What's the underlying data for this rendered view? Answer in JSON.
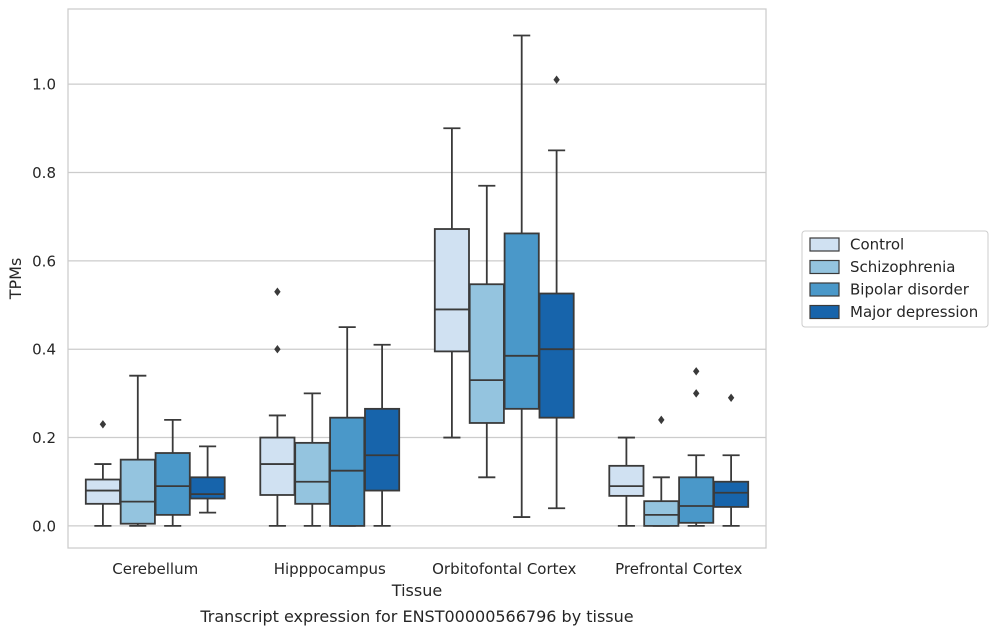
{
  "chart_data": {
    "type": "box",
    "caption": "Transcript expression for ENST00000566796 by tissue",
    "xlabel": "Tissue",
    "ylabel": "TPMs",
    "ylim": [
      -0.05,
      1.17
    ],
    "yticks": [
      0.0,
      0.2,
      0.4,
      0.6,
      0.8,
      1.0
    ],
    "ytick_labels": [
      "0.0",
      "0.2",
      "0.4",
      "0.6",
      "0.8",
      "1.0"
    ],
    "categories": [
      "Cerebellum",
      "Hipppocampus",
      "Orbitofontal Cortex",
      "Prefrontal Cortex"
    ],
    "grid": "horizontal",
    "legend_position": "right",
    "series": [
      {
        "name": "Control",
        "color": "#d0e1f2",
        "boxes": [
          {
            "whislo": 0.0,
            "q1": 0.05,
            "med": 0.08,
            "q3": 0.105,
            "whishi": 0.14,
            "fliers": [
              0.23
            ]
          },
          {
            "whislo": 0.0,
            "q1": 0.07,
            "med": 0.14,
            "q3": 0.2,
            "whishi": 0.25,
            "fliers": [
              0.4,
              0.53
            ]
          },
          {
            "whislo": 0.2,
            "q1": 0.395,
            "med": 0.49,
            "q3": 0.672,
            "whishi": 0.9,
            "fliers": []
          },
          {
            "whislo": 0.0,
            "q1": 0.068,
            "med": 0.09,
            "q3": 0.136,
            "whishi": 0.2,
            "fliers": []
          }
        ]
      },
      {
        "name": "Schizophrenia",
        "color": "#94c4df",
        "boxes": [
          {
            "whislo": 0.0,
            "q1": 0.005,
            "med": 0.055,
            "q3": 0.15,
            "whishi": 0.34,
            "fliers": []
          },
          {
            "whislo": 0.0,
            "q1": 0.05,
            "med": 0.1,
            "q3": 0.188,
            "whishi": 0.3,
            "fliers": []
          },
          {
            "whislo": 0.11,
            "q1": 0.233,
            "med": 0.33,
            "q3": 0.547,
            "whishi": 0.77,
            "fliers": []
          },
          {
            "whislo": 0.0,
            "q1": 0.0,
            "med": 0.025,
            "q3": 0.056,
            "whishi": 0.11,
            "fliers": [
              0.24
            ]
          }
        ]
      },
      {
        "name": "Bipolar disorder",
        "color": "#4a98c9",
        "boxes": [
          {
            "whislo": 0.0,
            "q1": 0.025,
            "med": 0.09,
            "q3": 0.165,
            "whishi": 0.24,
            "fliers": []
          },
          {
            "whislo": 0.0,
            "q1": 0.0,
            "med": 0.125,
            "q3": 0.245,
            "whishi": 0.45,
            "fliers": []
          },
          {
            "whislo": 0.02,
            "q1": 0.265,
            "med": 0.385,
            "q3": 0.662,
            "whishi": 1.11,
            "fliers": []
          },
          {
            "whislo": 0.0,
            "q1": 0.007,
            "med": 0.045,
            "q3": 0.11,
            "whishi": 0.16,
            "fliers": [
              0.3,
              0.35
            ]
          }
        ]
      },
      {
        "name": "Major depression",
        "color": "#1764ab",
        "boxes": [
          {
            "whislo": 0.03,
            "q1": 0.062,
            "med": 0.072,
            "q3": 0.11,
            "whishi": 0.18,
            "fliers": []
          },
          {
            "whislo": 0.0,
            "q1": 0.08,
            "med": 0.16,
            "q3": 0.265,
            "whishi": 0.41,
            "fliers": []
          },
          {
            "whislo": 0.04,
            "q1": 0.245,
            "med": 0.4,
            "q3": 0.526,
            "whishi": 0.85,
            "fliers": [
              1.01
            ]
          },
          {
            "whislo": 0.0,
            "q1": 0.043,
            "med": 0.075,
            "q3": 0.1,
            "whishi": 0.16,
            "fliers": [
              0.29
            ]
          }
        ]
      }
    ]
  }
}
